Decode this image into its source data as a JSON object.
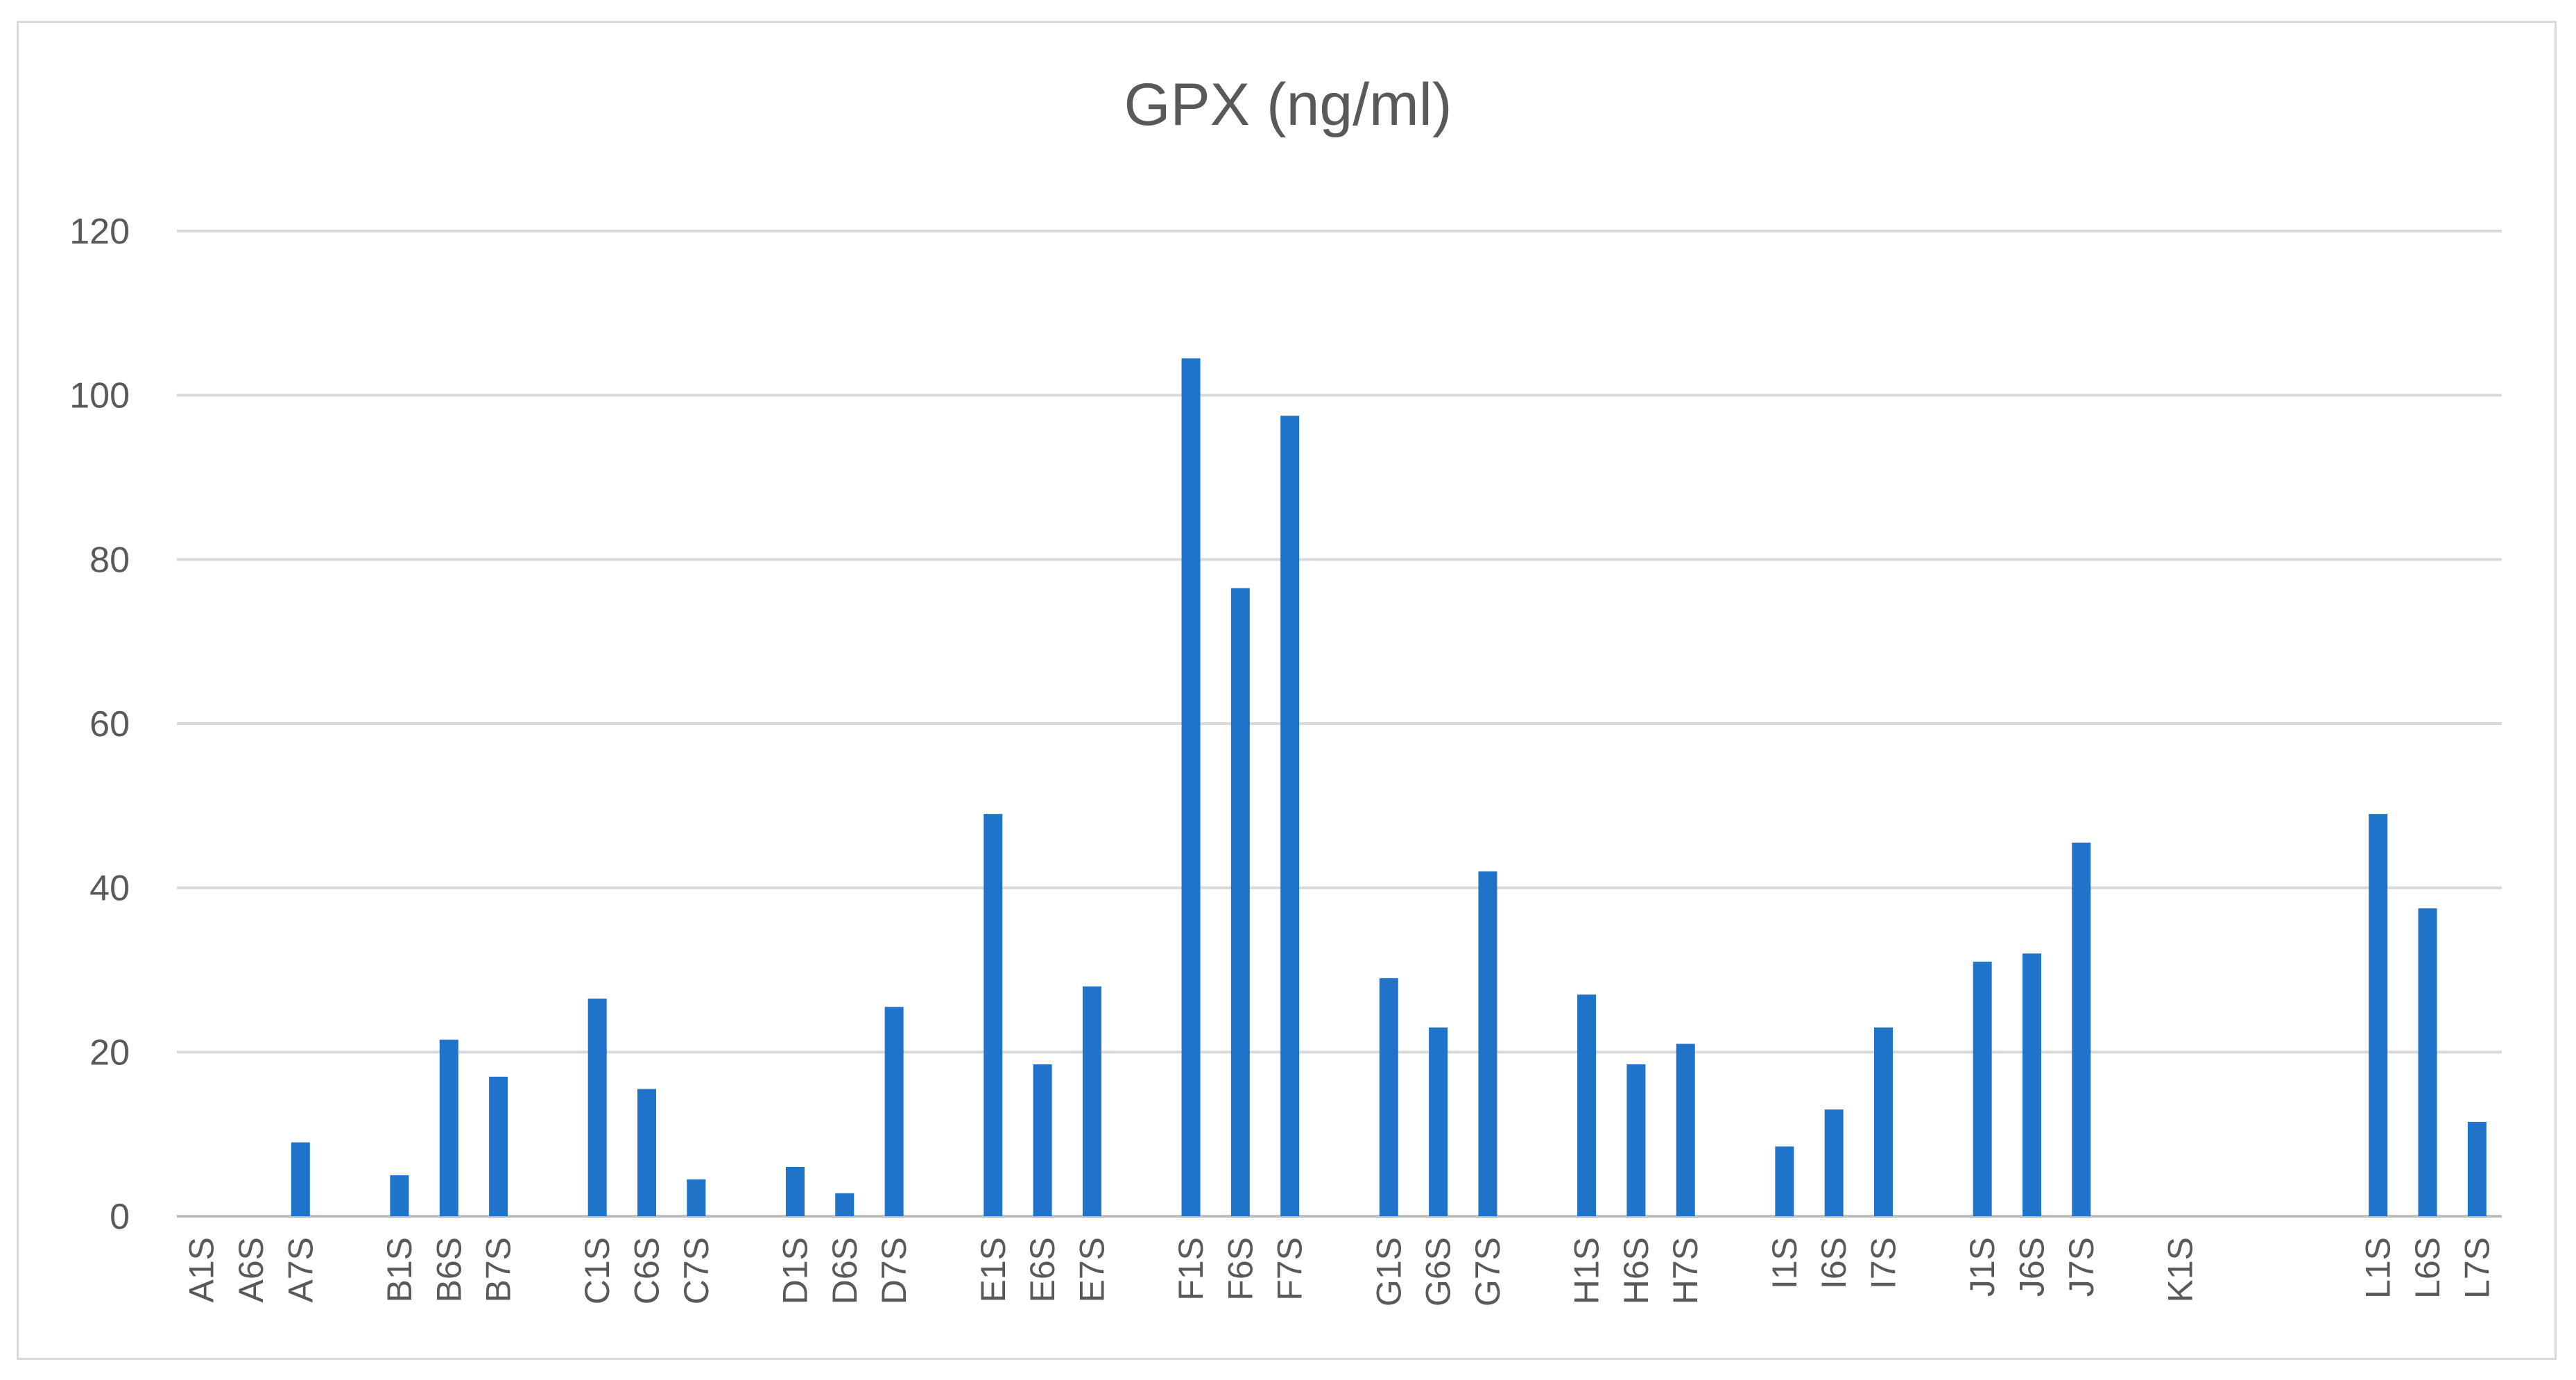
{
  "chart_data": {
    "type": "bar",
    "title": "GPX (ng/ml)",
    "xlabel": "",
    "ylabel": "",
    "ylim": [
      0,
      120
    ],
    "yticks": [
      0,
      20,
      40,
      60,
      80,
      100,
      120
    ],
    "grid": true,
    "legend": "none",
    "bar_color": "#1f73c9",
    "groups": [
      {
        "labels": [
          "A1S",
          "A6S",
          "A7S"
        ],
        "values": [
          0,
          0,
          9
        ]
      },
      {
        "labels": [
          "B1S",
          "B6S",
          "B7S"
        ],
        "values": [
          5,
          21.5,
          17
        ]
      },
      {
        "labels": [
          "C1S",
          "C6S",
          "C7S"
        ],
        "values": [
          26.5,
          15.5,
          4.5
        ]
      },
      {
        "labels": [
          "D1S",
          "D6S",
          "D7S"
        ],
        "values": [
          6,
          2.8,
          25.5
        ]
      },
      {
        "labels": [
          "E1S",
          "E6S",
          "E7S"
        ],
        "values": [
          49,
          18.5,
          28
        ]
      },
      {
        "labels": [
          "F1S",
          "F6S",
          "F7S"
        ],
        "values": [
          104.5,
          76.5,
          97.5
        ]
      },
      {
        "labels": [
          "G1S",
          "G6S",
          "G7S"
        ],
        "values": [
          29,
          23,
          42
        ]
      },
      {
        "labels": [
          "H1S",
          "H6S",
          "H7S"
        ],
        "values": [
          27,
          18.5,
          21
        ]
      },
      {
        "labels": [
          "I1S",
          "I6S",
          "I7S"
        ],
        "values": [
          8.5,
          13,
          23
        ]
      },
      {
        "labels": [
          "J1S",
          "J6S",
          "J7S"
        ],
        "values": [
          31,
          32,
          45.5
        ]
      },
      {
        "labels": [
          "K1S"
        ],
        "values": [
          0
        ]
      },
      {
        "labels": [
          "L1S",
          "L6S",
          "L7S"
        ],
        "values": [
          49,
          37.5,
          11.5
        ]
      }
    ]
  }
}
